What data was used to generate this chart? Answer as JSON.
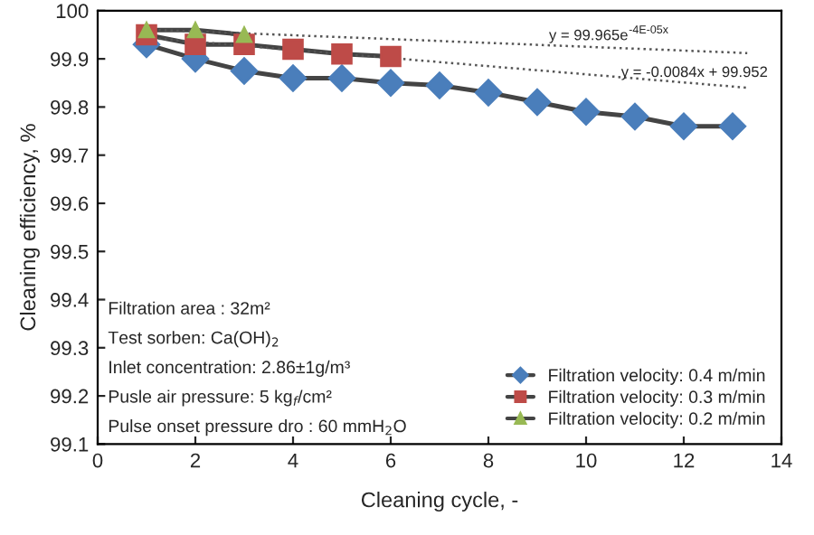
{
  "chart_data": {
    "type": "line",
    "xlabel": "Cleaning cycle, -",
    "ylabel": "Cleaning efficiency, %",
    "xlim": [
      0,
      14
    ],
    "xticks": [
      0,
      2,
      4,
      6,
      8,
      10,
      12,
      14
    ],
    "ylim": [
      99.1,
      100
    ],
    "yticks": [
      {
        "value": 99.1,
        "label": "99.1"
      },
      {
        "value": 99.2,
        "label": "99.2"
      },
      {
        "value": 99.3,
        "label": "99.3"
      },
      {
        "value": 99.4,
        "label": "99.4"
      },
      {
        "value": 99.5,
        "label": "99.5"
      },
      {
        "value": 99.6,
        "label": "99.6"
      },
      {
        "value": 99.7,
        "label": "99.7"
      },
      {
        "value": 99.8,
        "label": "99.8"
      },
      {
        "value": 99.9,
        "label": "99.9"
      },
      {
        "value": 100,
        "label": "100"
      }
    ],
    "grid": false,
    "legend": "bottom right",
    "line_style": "solid",
    "series": [
      {
        "name": "Filtration velocity: 0.4 m/min",
        "color": "#4a7ebb",
        "marker": "diamond",
        "x": [
          1,
          2,
          3,
          4,
          5,
          6,
          7,
          8,
          9,
          10,
          11,
          12,
          13
        ],
        "values": [
          99.93,
          99.9,
          99.875,
          99.86,
          99.86,
          99.85,
          99.845,
          99.83,
          99.81,
          99.79,
          99.78,
          99.76,
          99.76
        ]
      },
      {
        "name": "Filtration velocity: 0.3 m/min",
        "color": "#be4b48",
        "marker": "square",
        "x": [
          1,
          2,
          3,
          4,
          5,
          6
        ],
        "values": [
          99.95,
          99.93,
          99.93,
          99.92,
          99.91,
          99.905
        ]
      },
      {
        "name": "Filtration velocity: 0.2 m/min",
        "color": "#98b954",
        "marker": "triangle",
        "x": [
          1,
          2,
          3
        ],
        "values": [
          99.96,
          99.96,
          99.95
        ]
      },
      {
        "type": "line",
        "color": "#555555",
        "marker": "none",
        "line_style": "dotted",
        "x": [
          1,
          13.3
        ],
        "values": [
          99.961,
          99.912
        ]
      },
      {
        "type": "line",
        "color": "#555555",
        "marker": "none",
        "line_style": "dotted",
        "x": [
          1,
          13.3
        ],
        "values": [
          99.944,
          99.84
        ]
      }
    ],
    "annotations": [
      "y = 99.965e$^{-4E-05x}$",
      "y = -0.0084x + 99.952",
      "Filtration area : 32m²",
      "Test sorben: Ca(OH)$_{2}$",
      "Inlet concentration: 2.86±1g/m³",
      "Pusle air pressure: 5 kg$_{f}$/cm²",
      "Pulse onset pressure dro : 60 mmH$_{2}$O"
    ]
  }
}
